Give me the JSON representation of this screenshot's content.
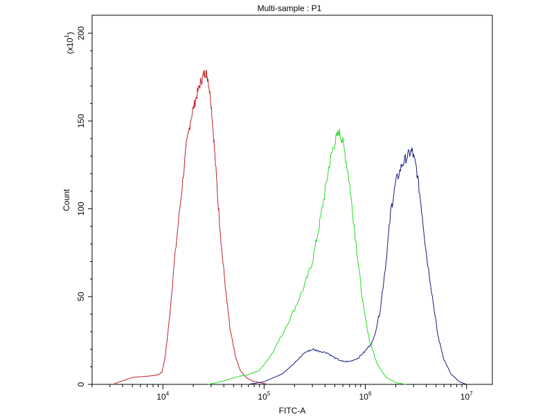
{
  "chart_data": {
    "type": "line",
    "title": "Multi-sample : P1",
    "xlabel": "FITC-A",
    "ylabel": "Count",
    "y_multiplier_label": "(x10",
    "y_multiplier_exp": "1",
    "x_scale": "log",
    "xlim": [
      2000,
      18000000
    ],
    "ylim": [
      0,
      2000
    ],
    "x_ticks": [
      {
        "base": "10",
        "exp": "4",
        "value": 10000
      },
      {
        "base": "10",
        "exp": "5",
        "value": 100000
      },
      {
        "base": "10",
        "exp": "6",
        "value": 1000000
      },
      {
        "base": "10",
        "exp": "7",
        "value": 10000000
      }
    ],
    "y_ticks": [
      {
        "label": "0",
        "value": 0
      },
      {
        "label": "50",
        "value": 500
      },
      {
        "label": "100",
        "value": 1000
      },
      {
        "label": "150",
        "value": 1500
      },
      {
        "label": "200",
        "value": 2000
      }
    ],
    "grid": false,
    "series": [
      {
        "color": "#c0202a",
        "points": [
          [
            3200,
            0
          ],
          [
            4000,
            20
          ],
          [
            5000,
            40
          ],
          [
            6500,
            45
          ],
          [
            8000,
            50
          ],
          [
            9000,
            55
          ],
          [
            9800,
            70
          ],
          [
            10500,
            150
          ],
          [
            11500,
            350
          ],
          [
            13000,
            700
          ],
          [
            15000,
            1050
          ],
          [
            17000,
            1350
          ],
          [
            19000,
            1520
          ],
          [
            21000,
            1620
          ],
          [
            23000,
            1700
          ],
          [
            25000,
            1760
          ],
          [
            26500,
            1780
          ],
          [
            28000,
            1740
          ],
          [
            30000,
            1600
          ],
          [
            32000,
            1380
          ],
          [
            35000,
            1050
          ],
          [
            38000,
            780
          ],
          [
            42000,
            520
          ],
          [
            46000,
            320
          ],
          [
            52000,
            160
          ],
          [
            58000,
            80
          ],
          [
            66000,
            40
          ],
          [
            76000,
            20
          ],
          [
            90000,
            10
          ],
          [
            110000,
            0
          ]
        ]
      },
      {
        "color": "#22dd22",
        "points": [
          [
            28000,
            0
          ],
          [
            40000,
            20
          ],
          [
            55000,
            45
          ],
          [
            70000,
            55
          ],
          [
            90000,
            80
          ],
          [
            115000,
            160
          ],
          [
            150000,
            280
          ],
          [
            200000,
            430
          ],
          [
            250000,
            560
          ],
          [
            300000,
            700
          ],
          [
            350000,
            900
          ],
          [
            400000,
            1100
          ],
          [
            450000,
            1280
          ],
          [
            500000,
            1380
          ],
          [
            550000,
            1440
          ],
          [
            600000,
            1380
          ],
          [
            680000,
            1200
          ],
          [
            750000,
            980
          ],
          [
            850000,
            700
          ],
          [
            950000,
            450
          ],
          [
            1100000,
            250
          ],
          [
            1300000,
            120
          ],
          [
            1600000,
            40
          ],
          [
            2000000,
            10
          ],
          [
            2500000,
            0
          ]
        ]
      },
      {
        "color": "#141c7a",
        "points": [
          [
            70000,
            0
          ],
          [
            100000,
            15
          ],
          [
            150000,
            60
          ],
          [
            200000,
            120
          ],
          [
            250000,
            180
          ],
          [
            300000,
            200
          ],
          [
            350000,
            190
          ],
          [
            420000,
            180
          ],
          [
            500000,
            150
          ],
          [
            600000,
            130
          ],
          [
            700000,
            130
          ],
          [
            850000,
            150
          ],
          [
            1000000,
            190
          ],
          [
            1200000,
            250
          ],
          [
            1400000,
            420
          ],
          [
            1600000,
            700
          ],
          [
            1800000,
            1000
          ],
          [
            2000000,
            1150
          ],
          [
            2300000,
            1250
          ],
          [
            2600000,
            1300
          ],
          [
            2900000,
            1330
          ],
          [
            3200000,
            1230
          ],
          [
            3600000,
            1000
          ],
          [
            4000000,
            750
          ],
          [
            4600000,
            500
          ],
          [
            5200000,
            280
          ],
          [
            6000000,
            140
          ],
          [
            7000000,
            60
          ],
          [
            8500000,
            15
          ],
          [
            10000000,
            0
          ]
        ]
      }
    ]
  }
}
